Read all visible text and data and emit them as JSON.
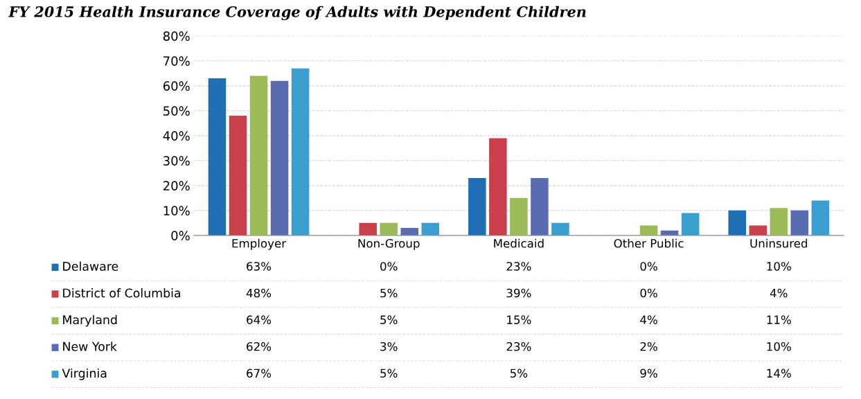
{
  "chart_data": {
    "type": "bar",
    "title": "FY 2015 Health Insurance Coverage of Adults with Dependent Children",
    "categories": [
      "Employer",
      "Non-Group",
      "Medicaid",
      "Other Public",
      "Uninsured"
    ],
    "series": [
      {
        "name": "Delaware",
        "color": "#1f6fb5",
        "values": [
          63,
          0,
          23,
          0,
          10
        ],
        "value_labels": [
          "63%",
          "0%",
          "23%",
          "0%",
          "10%"
        ]
      },
      {
        "name": "District of Columbia",
        "color": "#c9404a",
        "values": [
          48,
          5,
          39,
          0,
          4
        ],
        "value_labels": [
          "48%",
          "5%",
          "39%",
          "0%",
          "4%"
        ]
      },
      {
        "name": "Maryland",
        "color": "#9bbb59",
        "values": [
          64,
          5,
          15,
          4,
          11
        ],
        "value_labels": [
          "64%",
          "5%",
          "15%",
          "4%",
          "11%"
        ]
      },
      {
        "name": "New York",
        "color": "#5a6bb0",
        "values": [
          62,
          3,
          23,
          2,
          10
        ],
        "value_labels": [
          "62%",
          "3%",
          "23%",
          "2%",
          "10%"
        ]
      },
      {
        "name": "Virginia",
        "color": "#3a9fcf",
        "values": [
          67,
          5,
          5,
          9,
          14
        ],
        "value_labels": [
          "67%",
          "5%",
          "5%",
          "9%",
          "14%"
        ]
      }
    ],
    "ylim": [
      0,
      80
    ],
    "yticks": [
      {
        "value": 0,
        "label": "0%"
      },
      {
        "value": 10,
        "label": "10%"
      },
      {
        "value": 20,
        "label": "20%"
      },
      {
        "value": 30,
        "label": "30%"
      },
      {
        "value": 40,
        "label": "40%"
      },
      {
        "value": 50,
        "label": "50%"
      },
      {
        "value": 60,
        "label": "60%"
      },
      {
        "value": 70,
        "label": "70%"
      },
      {
        "value": 80,
        "label": "80%"
      }
    ],
    "grid": "y",
    "legend": "bottom"
  }
}
